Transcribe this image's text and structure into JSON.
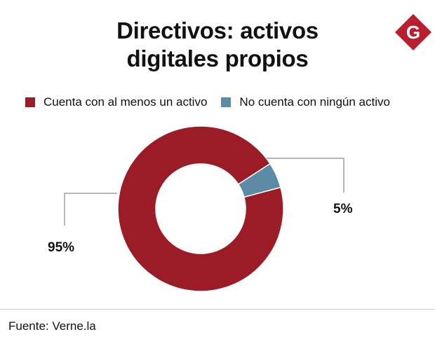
{
  "title_lines": [
    "Directivos: activos",
    "digitales propios"
  ],
  "logo_letter": "G",
  "source": "Fuente: Verne.la",
  "colors": {
    "primary": "#9b1c26",
    "secondary": "#5b8ba5",
    "logo": "#b81e2e"
  },
  "chart_data": {
    "type": "pie",
    "variant": "donut",
    "title": "Directivos: activos digitales propios",
    "categories": [
      "Cuenta con al menos un activo",
      "No cuenta con ningún activo"
    ],
    "values": [
      95,
      5
    ],
    "labels": [
      "95%",
      "5%"
    ],
    "colors": [
      "#9b1c26",
      "#5b8ba5"
    ],
    "legend": "top-left"
  }
}
